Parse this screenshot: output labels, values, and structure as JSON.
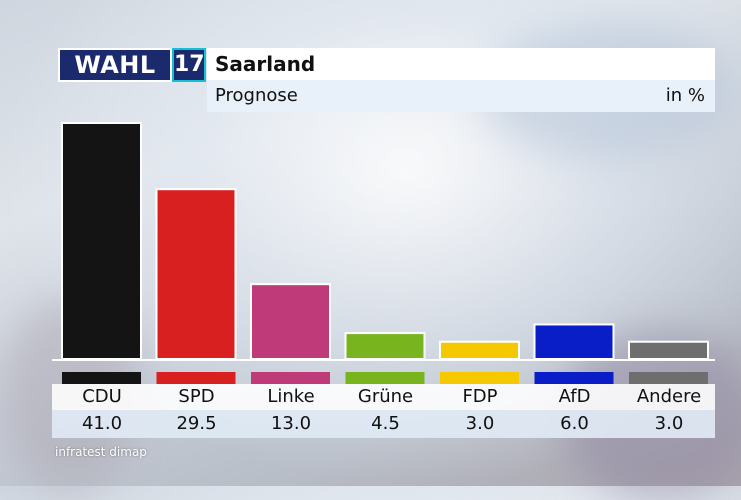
{
  "header": {
    "logo_text": "WAHL",
    "logo_number": "17",
    "title": "Saarland",
    "subtitle": "Prognose",
    "unit": "in %"
  },
  "source": "infratest dimap",
  "chart_data": {
    "type": "bar",
    "title": "Saarland",
    "subtitle": "Prognose",
    "unit": "in %",
    "ylim": [
      0,
      41
    ],
    "grid": false,
    "categories": [
      "CDU",
      "SPD",
      "Linke",
      "Grüne",
      "FDP",
      "AfD",
      "Andere"
    ],
    "values": [
      41.0,
      29.5,
      13.0,
      4.5,
      3.0,
      6.0,
      3.0
    ],
    "value_labels": [
      "41.0",
      "29.5",
      "13.0",
      "4.5",
      "3.0",
      "6.0",
      "3.0"
    ],
    "colors": [
      "#141414",
      "#d92020",
      "#bf3a78",
      "#78b41e",
      "#f5c800",
      "#0a1ec8",
      "#6e6e6e"
    ]
  }
}
